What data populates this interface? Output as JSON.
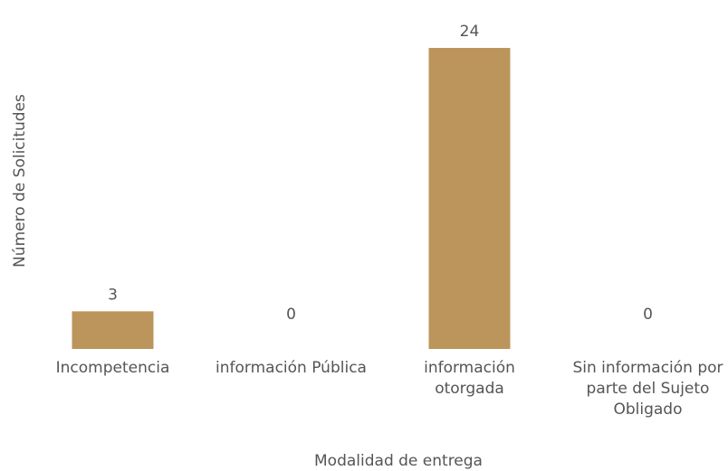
{
  "chart_data": {
    "type": "bar",
    "categories": [
      "Incompetencia",
      "información Pública",
      "información otorgada",
      "Sin información por parte del Sujeto Obligado"
    ],
    "values": [
      3,
      0,
      24,
      0
    ],
    "color": "#bc955c",
    "ylim": [
      0,
      24
    ],
    "x_label": "Modalidad de entrega",
    "y_label": "Número de Solicitudes"
  }
}
